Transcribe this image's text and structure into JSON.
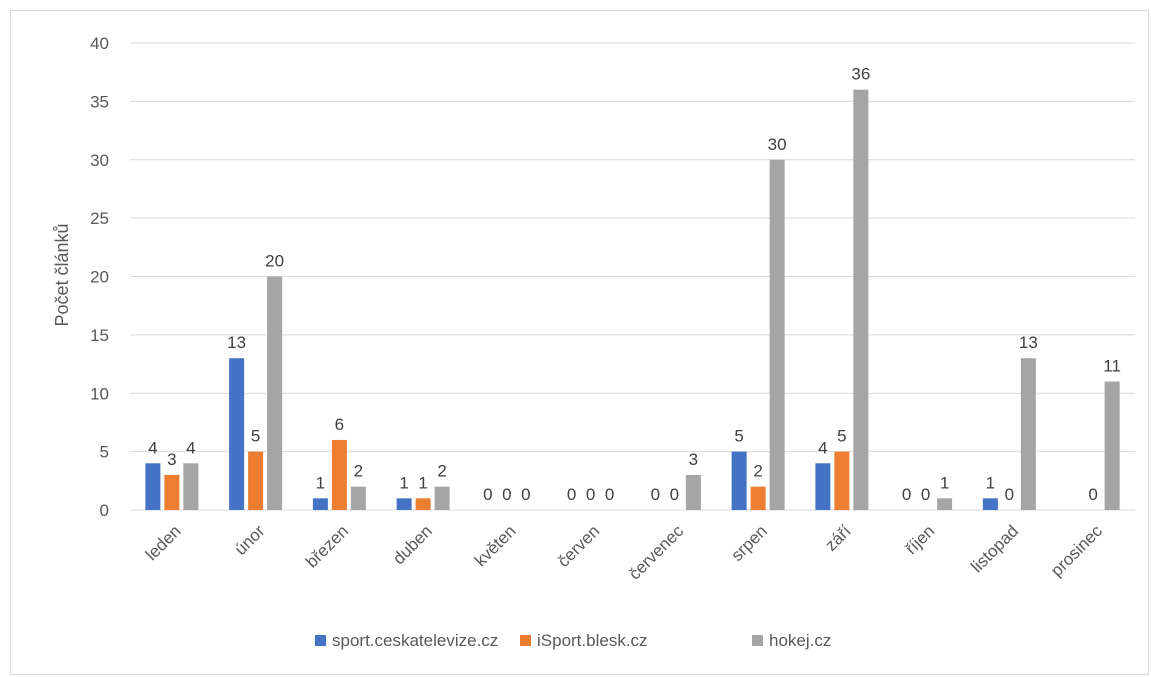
{
  "chart_data": {
    "type": "bar",
    "title": "",
    "xlabel": "",
    "ylabel": "Počet článků",
    "ylim": [
      0,
      40
    ],
    "yticks": [
      0,
      5,
      10,
      15,
      20,
      25,
      30,
      35,
      40
    ],
    "grid": true,
    "legend_position": "bottom",
    "categories": [
      "leden",
      "únor",
      "březen",
      "duben",
      "květen",
      "červen",
      "červenec",
      "srpen",
      "září",
      "říjen",
      "listopad",
      "prosinec"
    ],
    "series": [
      {
        "name": "sport.ceskatelevize.cz",
        "color": "#4472c4",
        "values": [
          4,
          13,
          1,
          1,
          0,
          0,
          0,
          5,
          4,
          0,
          1,
          0
        ],
        "labels": [
          "4",
          "13",
          "1",
          "1",
          "0",
          "0",
          "0",
          "5",
          "4",
          "0",
          "1",
          ""
        ]
      },
      {
        "name": "iSport.blesk.cz",
        "color": "#ed7d31",
        "values": [
          3,
          5,
          6,
          1,
          0,
          0,
          0,
          2,
          5,
          0,
          0,
          0
        ],
        "labels": [
          "3",
          "5",
          "6",
          "1",
          "0",
          "0",
          "0",
          "2",
          "5",
          "0",
          "0",
          "0"
        ]
      },
      {
        "name": "hokej.cz",
        "color": "#a5a5a5",
        "values": [
          4,
          20,
          2,
          2,
          0,
          0,
          3,
          30,
          36,
          1,
          13,
          11
        ],
        "labels": [
          "4",
          "20",
          "2",
          "2",
          "0",
          "0",
          "3",
          "30",
          "36",
          "1",
          "13",
          "11"
        ]
      }
    ]
  }
}
